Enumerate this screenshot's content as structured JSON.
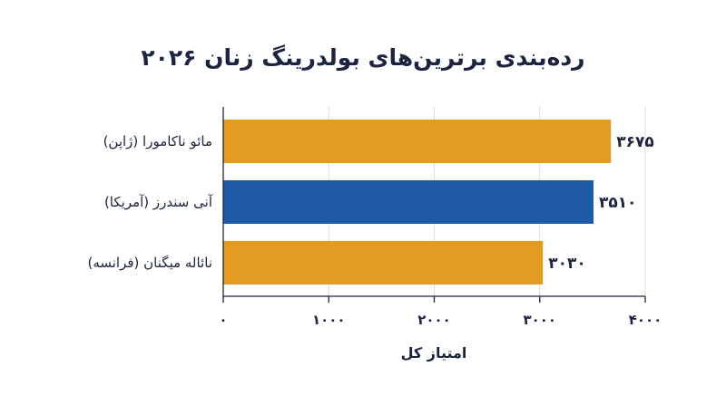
{
  "chart_data": {
    "type": "bar",
    "orientation": "horizontal",
    "title": "رده‌بندی برترین‌های بولدرینگ زنان ۲۰۲۶",
    "xlabel": "امتیاز کل",
    "ylabel": "",
    "xlim": [
      0,
      4000
    ],
    "x_ticks": [
      0,
      1000,
      2000,
      3000,
      4000
    ],
    "x_tick_labels": [
      "۰",
      "۱۰۰۰",
      "۲۰۰۰",
      "۳۰۰۰",
      "۴۰۰۰"
    ],
    "grid": "vertical",
    "categories": [
      "مائو ناکامورا (ژاپن)",
      "آنی سندرز (آمریکا)",
      "نائاله میگنان (فرانسه)"
    ],
    "values": [
      3675,
      3510,
      3030
    ],
    "value_labels": [
      "۳۶۷۵",
      "۳۵۱۰",
      "۳۰۳۰"
    ],
    "bar_colors": [
      "#e39b21",
      "#1f5aa7",
      "#e39b21"
    ],
    "colors": {
      "text": "#1d2440",
      "grid": "#dcdcdc",
      "axis": "#1d2440"
    }
  }
}
